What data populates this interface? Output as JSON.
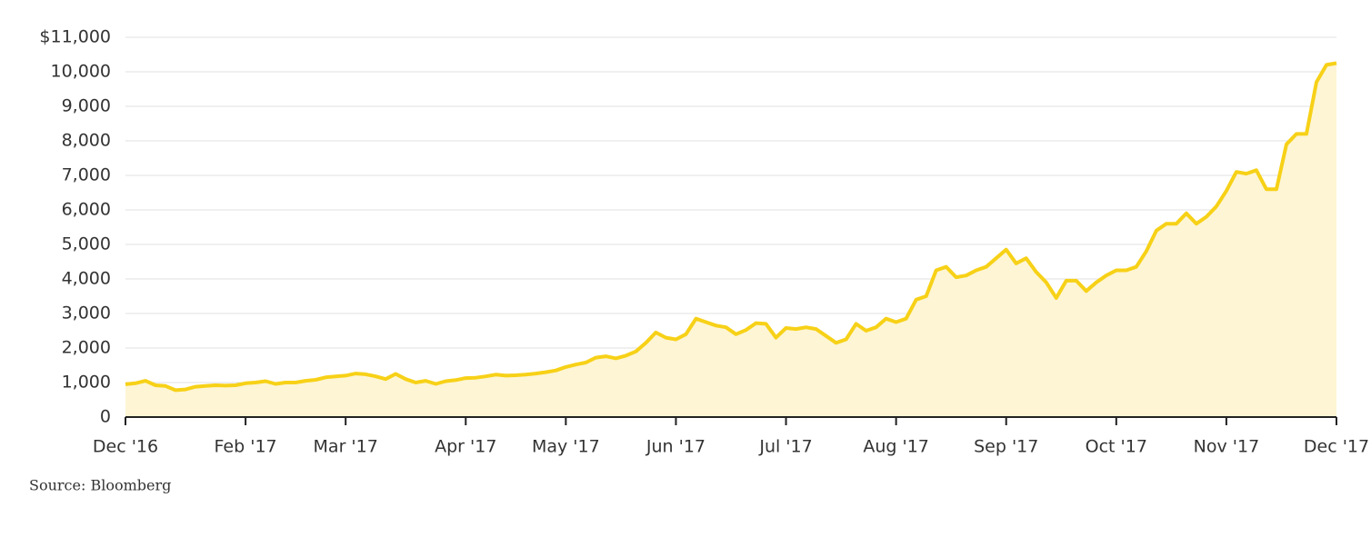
{
  "chart_data": {
    "type": "area",
    "source": "Source: Bloomberg",
    "categories": [
      "Dec '16",
      null,
      null,
      null,
      null,
      null,
      null,
      null,
      null,
      null,
      null,
      null,
      "Feb '17",
      null,
      null,
      null,
      null,
      null,
      null,
      null,
      null,
      null,
      "Mar '17",
      null,
      null,
      null,
      null,
      null,
      null,
      null,
      null,
      null,
      null,
      null,
      "Apr '17",
      null,
      null,
      null,
      null,
      null,
      null,
      null,
      null,
      null,
      "May '17",
      null,
      null,
      null,
      null,
      null,
      null,
      null,
      null,
      null,
      null,
      "Jun '17",
      null,
      null,
      null,
      null,
      null,
      null,
      null,
      null,
      null,
      null,
      "Jul '17",
      null,
      null,
      null,
      null,
      null,
      null,
      null,
      null,
      null,
      null,
      "Aug '17",
      null,
      null,
      null,
      null,
      null,
      null,
      null,
      null,
      null,
      null,
      "Sep '17",
      null,
      null,
      null,
      null,
      null,
      null,
      null,
      null,
      null,
      null,
      "Oct '17",
      null,
      null,
      null,
      null,
      null,
      null,
      null,
      null,
      null,
      null,
      "Nov '17",
      null,
      null,
      null,
      null,
      null,
      null,
      null,
      null,
      null,
      null,
      "Dec '17"
    ],
    "values": [
      950,
      980,
      1050,
      920,
      900,
      780,
      800,
      880,
      900,
      920,
      910,
      920,
      980,
      1000,
      1040,
      960,
      1000,
      1000,
      1050,
      1080,
      1150,
      1180,
      1200,
      1260,
      1240,
      1180,
      1100,
      1250,
      1100,
      1000,
      1050,
      960,
      1040,
      1070,
      1130,
      1140,
      1180,
      1230,
      1200,
      1210,
      1230,
      1260,
      1300,
      1350,
      1450,
      1520,
      1580,
      1720,
      1760,
      1700,
      1780,
      1900,
      2150,
      2450,
      2300,
      2250,
      2400,
      2850,
      2750,
      2650,
      2600,
      2400,
      2520,
      2720,
      2700,
      2300,
      2580,
      2550,
      2600,
      2550,
      2350,
      2150,
      2250,
      2700,
      2500,
      2600,
      2850,
      2750,
      2850,
      3400,
      3500,
      4250,
      4350,
      4050,
      4100,
      4250,
      4350,
      4600,
      4850,
      4450,
      4600,
      4200,
      3900,
      3450,
      3950,
      3950,
      3650,
      3900,
      4100,
      4250,
      4250,
      4350,
      4800,
      5400,
      5600,
      5600,
      5900,
      5600,
      5800,
      6100,
      6550,
      7100,
      7050,
      7150,
      6600,
      6600,
      7900,
      8200,
      8200,
      9700,
      10200,
      10250
    ],
    "color": "#f7d117",
    "area_color": "#fdf5d4",
    "ylim": [
      0,
      11000
    ],
    "yticks": [
      0,
      {
        "value": 1000,
        "label": "1,000"
      },
      {
        "value": 2000,
        "label": "2,000"
      },
      {
        "value": 3000,
        "label": "3,000"
      },
      {
        "value": 4000,
        "label": "4,000"
      },
      {
        "value": 5000,
        "label": "5,000"
      },
      {
        "value": 6000,
        "label": "6,000"
      },
      {
        "value": 7000,
        "label": "7,000"
      },
      {
        "value": 8000,
        "label": "8,000"
      },
      {
        "value": 9000,
        "label": "9,000"
      },
      {
        "value": 10000,
        "label": "10,000"
      },
      {
        "value": 11000,
        "label": "$11,000"
      }
    ],
    "grid": true
  }
}
